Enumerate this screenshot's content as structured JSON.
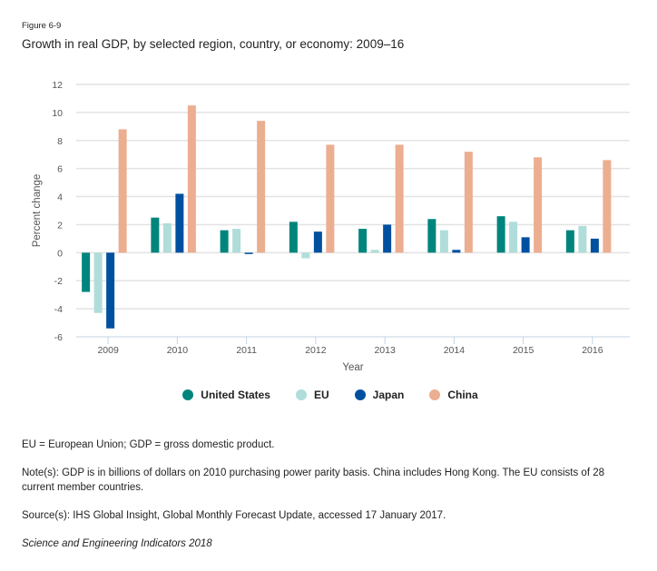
{
  "figure_label": "Figure 6-9",
  "title": "Growth in real GDP, by selected region, country, or economy: 2009–16",
  "chart_data": {
    "type": "bar",
    "title": "Growth in real GDP, by selected region, country, or economy: 2009–16",
    "xlabel": "Year",
    "ylabel": "Percent change",
    "categories": [
      "2009",
      "2010",
      "2011",
      "2012",
      "2013",
      "2014",
      "2015",
      "2016"
    ],
    "ylim": [
      -6,
      12
    ],
    "yticks": [
      -6,
      -4,
      -2,
      0,
      2,
      4,
      6,
      8,
      10,
      12
    ],
    "grid": true,
    "legend_position": "bottom",
    "series": [
      {
        "name": "United States",
        "color": "#00857d",
        "values": [
          -2.8,
          2.5,
          1.6,
          2.2,
          1.7,
          2.4,
          2.6,
          1.6
        ]
      },
      {
        "name": "EU",
        "color": "#b0ddd9",
        "values": [
          -4.3,
          2.1,
          1.7,
          -0.4,
          0.2,
          1.6,
          2.2,
          1.9
        ]
      },
      {
        "name": "Japan",
        "color": "#0050a0",
        "values": [
          -5.4,
          4.2,
          -0.1,
          1.5,
          2.0,
          0.2,
          1.1,
          1.0
        ]
      },
      {
        "name": "China",
        "color": "#ecae90",
        "values": [
          8.8,
          10.5,
          9.4,
          7.7,
          7.7,
          7.2,
          6.8,
          6.6
        ]
      }
    ]
  },
  "footer": {
    "abbreviations": "EU = European Union; GDP = gross domestic product.",
    "notes": "Note(s): GDP is in billions of dollars on 2010 purchasing power parity basis. China includes Hong Kong. The EU consists of 28 current member countries.",
    "source": "Source(s): IHS Global Insight, Global Monthly Forecast Update, accessed 17 January 2017.",
    "publication": "Science and Engineering Indicators 2018"
  }
}
